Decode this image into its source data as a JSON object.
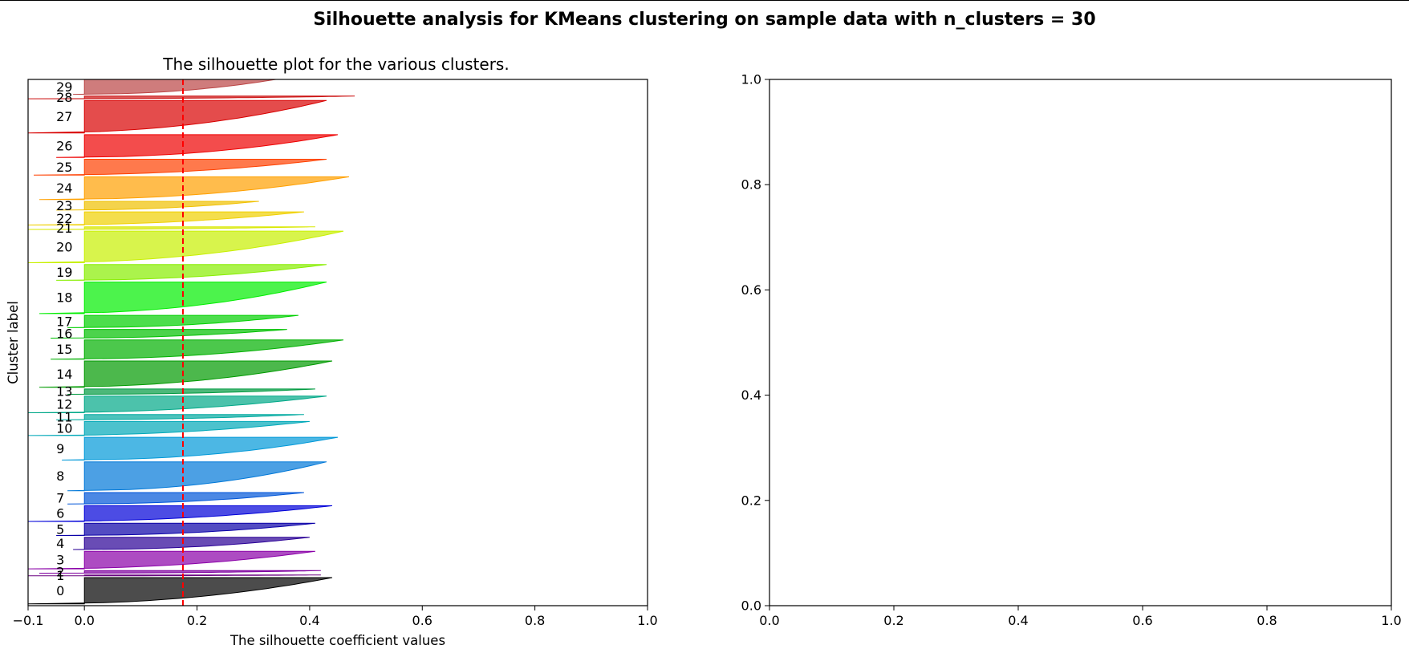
{
  "figure": {
    "suptitle": "Silhouette analysis for KMeans clustering on sample data with n_clusters = 30"
  },
  "chart_data": [
    {
      "type": "area",
      "subtype": "silhouette",
      "title": "The silhouette plot for the various clusters.",
      "xlabel": "The silhouette coefficient values",
      "ylabel": "Cluster label",
      "xlim": [
        -0.1,
        1.0
      ],
      "ylim": [
        0,
        3000
      ],
      "xticks": [
        -0.1,
        0.0,
        0.2,
        0.4,
        0.6,
        0.8,
        1.0
      ],
      "xtick_labels": [
        "−0.1",
        "0.0",
        "0.2",
        "0.4",
        "0.6",
        "0.8",
        "1.0"
      ],
      "yticks": [],
      "grid": false,
      "average_silhouette_score": 0.175,
      "average_line_color": "#ff0000",
      "clusters": [
        {
          "label": "0",
          "y_lower": 10,
          "y_upper": 160,
          "max_value": 0.44,
          "min_value": -0.1,
          "color": "#000000"
        },
        {
          "label": "1",
          "y_lower": 170,
          "y_upper": 175,
          "max_value": 0.42,
          "min_value": -0.1,
          "color": "#6a0080"
        },
        {
          "label": "2",
          "y_lower": 185,
          "y_upper": 200,
          "max_value": 0.42,
          "min_value": -0.08,
          "color": "#7f00a0"
        },
        {
          "label": "3",
          "y_lower": 210,
          "y_upper": 310,
          "max_value": 0.41,
          "min_value": -0.1,
          "color": "#8a00a8"
        },
        {
          "label": "4",
          "y_lower": 320,
          "y_upper": 390,
          "max_value": 0.4,
          "min_value": -0.02,
          "color": "#2a0096"
        },
        {
          "label": "5",
          "y_lower": 400,
          "y_upper": 470,
          "max_value": 0.41,
          "min_value": -0.05,
          "color": "#0a00a8"
        },
        {
          "label": "6",
          "y_lower": 480,
          "y_upper": 570,
          "max_value": 0.44,
          "min_value": -0.1,
          "color": "#0000d8"
        },
        {
          "label": "7",
          "y_lower": 580,
          "y_upper": 645,
          "max_value": 0.39,
          "min_value": -0.03,
          "color": "#0055d8"
        },
        {
          "label": "8",
          "y_lower": 655,
          "y_upper": 820,
          "max_value": 0.43,
          "min_value": -0.03,
          "color": "#0078d8"
        },
        {
          "label": "9",
          "y_lower": 830,
          "y_upper": 960,
          "max_value": 0.45,
          "min_value": -0.04,
          "color": "#0098d8"
        },
        {
          "label": "10",
          "y_lower": 970,
          "y_upper": 1050,
          "max_value": 0.4,
          "min_value": -0.1,
          "color": "#00a8b8"
        },
        {
          "label": "11",
          "y_lower": 1060,
          "y_upper": 1090,
          "max_value": 0.39,
          "min_value": -0.05,
          "color": "#00aaa0"
        },
        {
          "label": "12",
          "y_lower": 1100,
          "y_upper": 1195,
          "max_value": 0.43,
          "min_value": -0.1,
          "color": "#00a888"
        },
        {
          "label": "13",
          "y_lower": 1205,
          "y_upper": 1235,
          "max_value": 0.41,
          "min_value": -0.03,
          "color": "#009a40"
        },
        {
          "label": "14",
          "y_lower": 1245,
          "y_upper": 1395,
          "max_value": 0.44,
          "min_value": -0.08,
          "color": "#009a00"
        },
        {
          "label": "15",
          "y_lower": 1405,
          "y_upper": 1515,
          "max_value": 0.46,
          "min_value": -0.06,
          "color": "#00b000"
        },
        {
          "label": "16",
          "y_lower": 1525,
          "y_upper": 1575,
          "max_value": 0.36,
          "min_value": -0.06,
          "color": "#00c000"
        },
        {
          "label": "17",
          "y_lower": 1585,
          "y_upper": 1655,
          "max_value": 0.38,
          "min_value": -0.03,
          "color": "#00d000"
        },
        {
          "label": "18",
          "y_lower": 1665,
          "y_upper": 1845,
          "max_value": 0.43,
          "min_value": -0.08,
          "color": "#00ee00"
        },
        {
          "label": "19",
          "y_lower": 1855,
          "y_upper": 1945,
          "max_value": 0.43,
          "min_value": -0.05,
          "color": "#88ee00"
        },
        {
          "label": "20",
          "y_lower": 1955,
          "y_upper": 2135,
          "max_value": 0.46,
          "min_value": -0.1,
          "color": "#c8f000"
        },
        {
          "label": "21",
          "y_lower": 2145,
          "y_upper": 2160,
          "max_value": 0.41,
          "min_value": -0.1,
          "color": "#d8e800"
        },
        {
          "label": "22",
          "y_lower": 2170,
          "y_upper": 2245,
          "max_value": 0.39,
          "min_value": -0.1,
          "color": "#f0d000"
        },
        {
          "label": "23",
          "y_lower": 2255,
          "y_upper": 2305,
          "max_value": 0.31,
          "min_value": -0.05,
          "color": "#f0c000"
        },
        {
          "label": "24",
          "y_lower": 2315,
          "y_upper": 2445,
          "max_value": 0.47,
          "min_value": -0.08,
          "color": "#ffa000"
        },
        {
          "label": "25",
          "y_lower": 2455,
          "y_upper": 2545,
          "max_value": 0.43,
          "min_value": -0.09,
          "color": "#ff4000"
        },
        {
          "label": "26",
          "y_lower": 2555,
          "y_upper": 2685,
          "max_value": 0.45,
          "min_value": -0.05,
          "color": "#ee0000"
        },
        {
          "label": "27",
          "y_lower": 2695,
          "y_upper": 2880,
          "max_value": 0.43,
          "min_value": -0.1,
          "color": "#d80000"
        },
        {
          "label": "28",
          "y_lower": 2890,
          "y_upper": 2905,
          "max_value": 0.48,
          "min_value": -0.1,
          "color": "#cc1111"
        },
        {
          "label": "29",
          "y_lower": 2915,
          "y_upper": 3000,
          "max_value": 0.34,
          "min_value": -0.02,
          "color": "#bb4444"
        }
      ]
    },
    {
      "type": "scatter",
      "title": "",
      "xlabel": "",
      "ylabel": "",
      "xlim": [
        0.0,
        1.0
      ],
      "ylim": [
        0.0,
        1.0
      ],
      "xticks": [
        0.0,
        0.2,
        0.4,
        0.6,
        0.8,
        1.0
      ],
      "xtick_labels": [
        "0.0",
        "0.2",
        "0.4",
        "0.6",
        "0.8",
        "1.0"
      ],
      "yticks": [
        0.0,
        0.2,
        0.4,
        0.6,
        0.8,
        1.0
      ],
      "ytick_labels": [
        "0.0",
        "0.2",
        "0.4",
        "0.6",
        "0.8",
        "1.0"
      ],
      "grid": false,
      "points": []
    }
  ]
}
